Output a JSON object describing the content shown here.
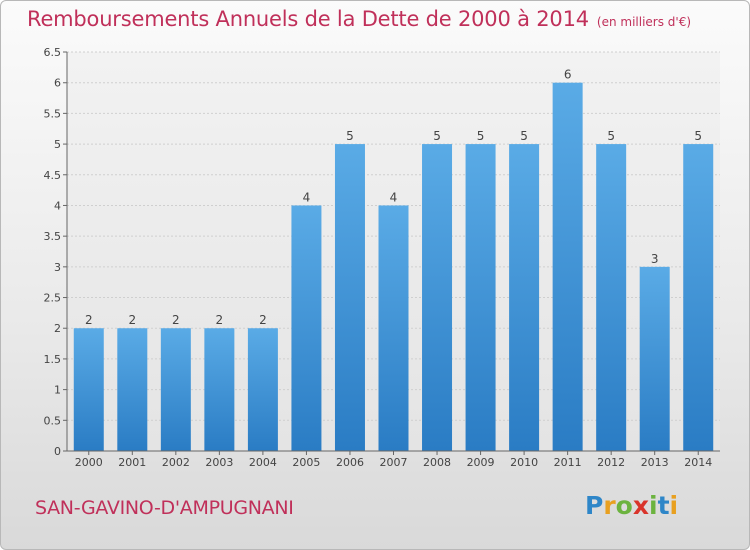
{
  "header": {
    "title": "Remboursements Annuels de la Dette de 2000 à 2014",
    "unit": "(en milliers d'€)"
  },
  "footer": {
    "commune": "SAN-GAVINO-D'AMPUGNANI",
    "logo_letters": [
      "P",
      "r",
      "o",
      "x",
      "i",
      "t",
      "i"
    ],
    "logo_colors": [
      "#2e86c8",
      "#e8a020",
      "#6cb33f",
      "#d9342b",
      "#6cb33f",
      "#2e86c8",
      "#e8a020"
    ]
  },
  "chart_data": {
    "type": "bar",
    "title": "Remboursements Annuels de la Dette de 2000 à 2014",
    "categories": [
      "2000",
      "2001",
      "2002",
      "2003",
      "2004",
      "2005",
      "2006",
      "2007",
      "2008",
      "2009",
      "2010",
      "2011",
      "2012",
      "2013",
      "2014"
    ],
    "values": [
      2,
      2,
      2,
      2,
      2,
      4,
      5,
      4,
      5,
      5,
      5,
      6,
      5,
      3,
      5
    ],
    "data_labels": [
      "2",
      "2",
      "2",
      "2",
      "2",
      "4",
      "5",
      "4",
      "5",
      "5",
      "5",
      "6",
      "5",
      "3",
      "5"
    ],
    "ylim": [
      0,
      6.5
    ],
    "yticks": [
      0,
      0.5,
      1,
      1.5,
      2,
      2.5,
      3,
      3.5,
      4,
      4.5,
      5,
      5.5,
      6,
      6.5
    ],
    "ytick_labels": [
      "0",
      "0.5",
      "1",
      "1.5",
      "2",
      "2.5",
      "3",
      "3.5",
      "4",
      "4.5",
      "5",
      "5.5",
      "6",
      "6.5"
    ],
    "grid": true,
    "bar_color": "#3a8fd6"
  }
}
